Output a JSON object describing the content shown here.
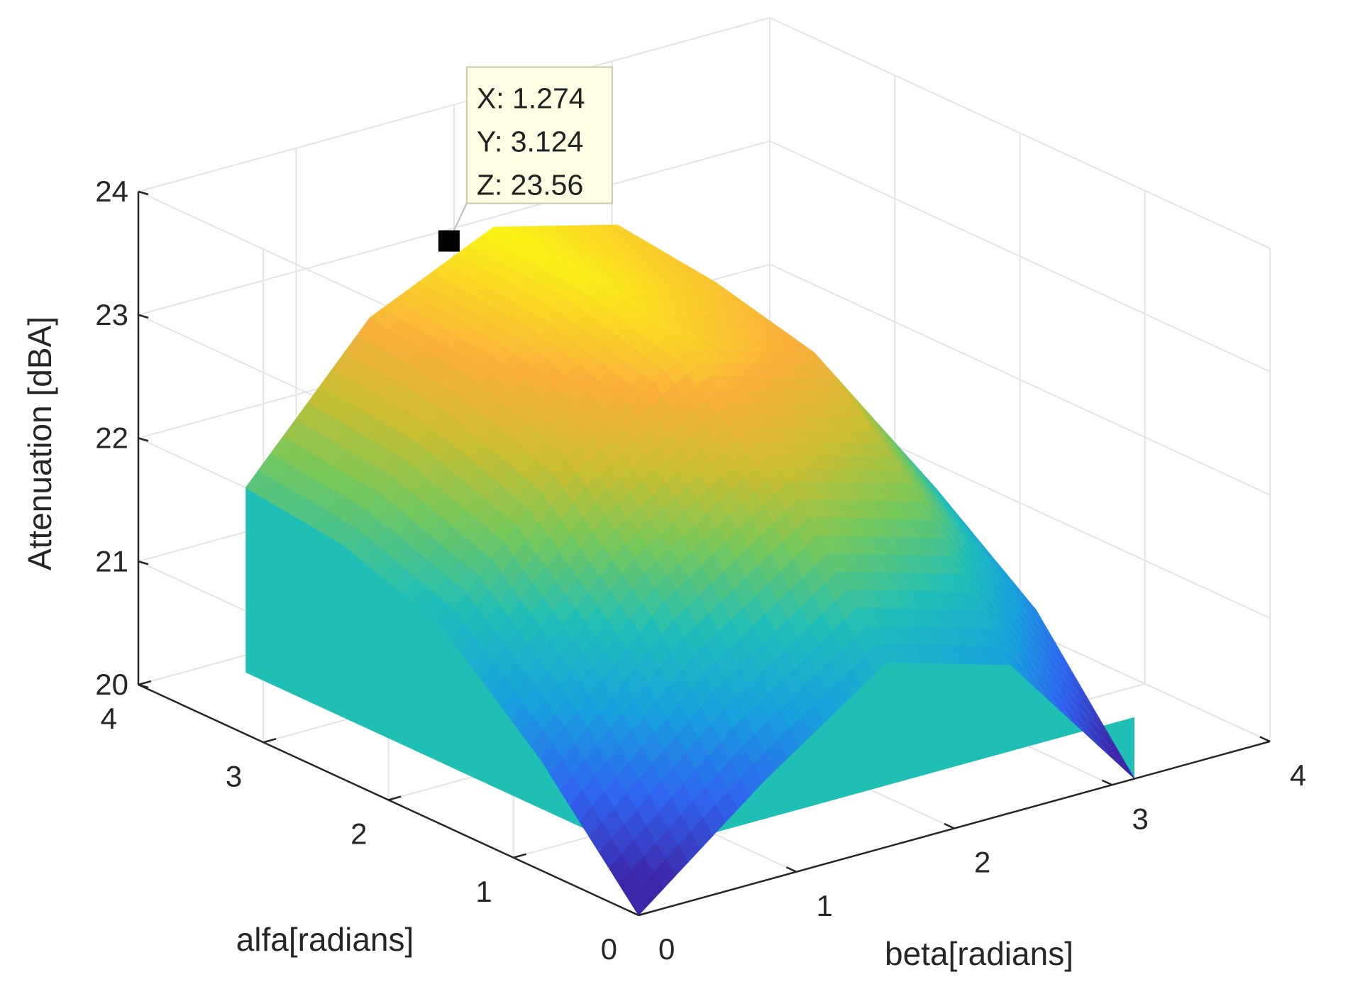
{
  "chart_data": {
    "type": "surface",
    "title": "",
    "xlabel": "beta[radians]",
    "ylabel": "alfa[radians]",
    "zlabel": "Attenuation [dBA]",
    "xlim": [
      0,
      4
    ],
    "ylim": [
      0,
      4
    ],
    "zlim": [
      20,
      24
    ],
    "xticks": [
      "0",
      "1",
      "2",
      "3",
      "4"
    ],
    "yticks": [
      "0",
      "1",
      "2",
      "3",
      "4"
    ],
    "zticks": [
      "20",
      "21",
      "22",
      "23",
      "24"
    ],
    "grid": true,
    "domain": {
      "x": [
        0,
        3.1416
      ],
      "y": [
        0,
        3.1416
      ]
    },
    "surface_samples": {
      "x": [
        0,
        0.785,
        1.571,
        2.356,
        3.142
      ],
      "y": [
        0,
        0.785,
        1.571,
        2.356,
        3.142
      ],
      "z": [
        [
          20.0,
          20.8,
          21.5,
          21.2,
          20.0
        ],
        [
          20.9,
          21.9,
          22.6,
          22.3,
          21.0
        ],
        [
          21.6,
          22.7,
          23.3,
          23.0,
          21.6
        ],
        [
          21.9,
          23.0,
          23.5,
          23.2,
          21.8
        ],
        [
          22.0,
          23.1,
          23.56,
          23.3,
          21.9
        ]
      ]
    },
    "wall_base_z": 20.5,
    "colormap": "parula",
    "datatip": {
      "x": 1.274,
      "y": 3.124,
      "z": 23.56,
      "lines": [
        "X: 1.274",
        "Y: 3.124",
        "Z: 23.56"
      ]
    }
  }
}
